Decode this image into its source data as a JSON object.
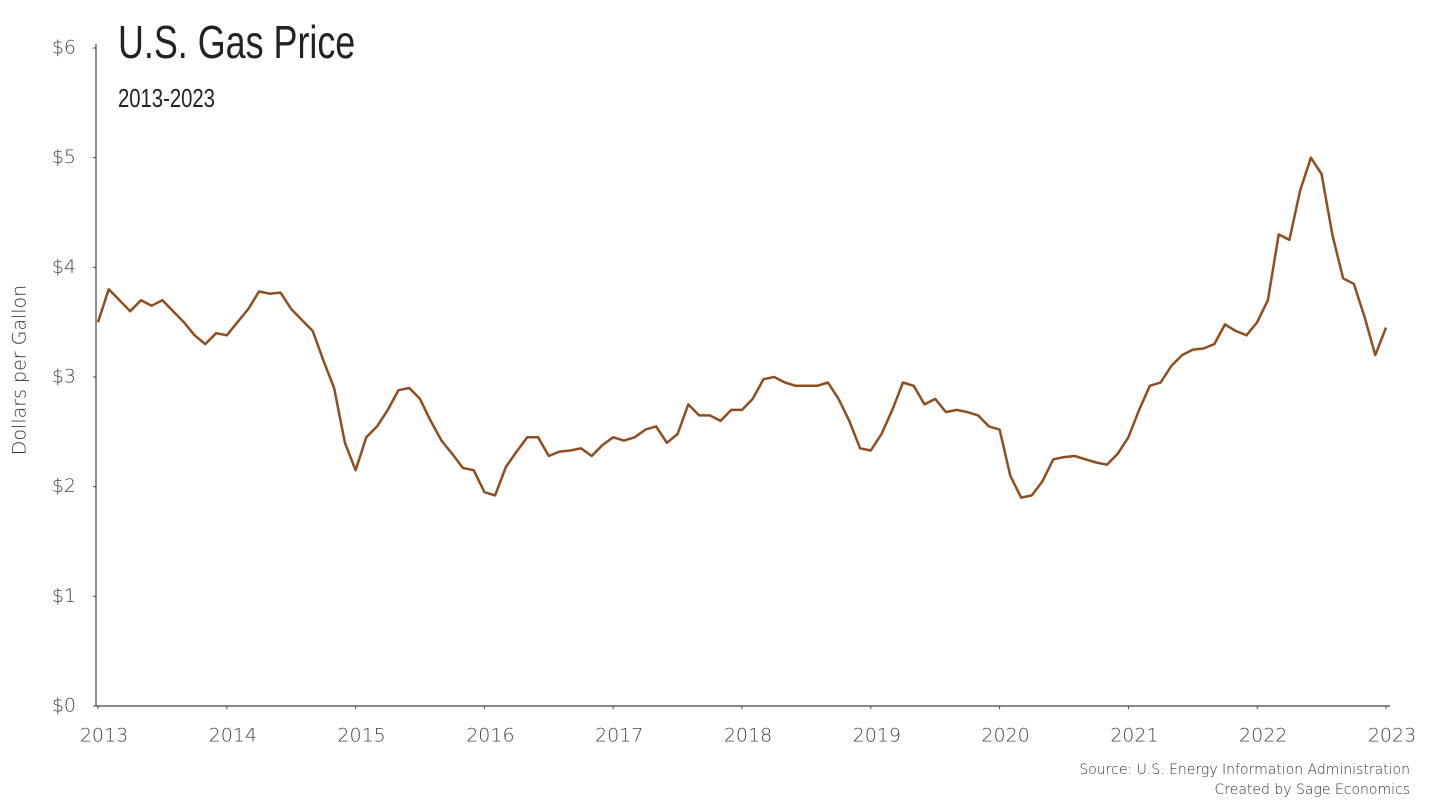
{
  "chart_data": {
    "type": "line",
    "title": "U.S. Gas Price",
    "subtitle": "2013-2023",
    "y_label": "Dollars per Gallon",
    "source": "Source: U.S. Energy Information Administration",
    "credit": "Created by Sage Economics",
    "color": "#8f4e20",
    "x": [
      2013,
      2013.083,
      2013.167,
      2013.25,
      2013.333,
      2013.417,
      2013.5,
      2013.583,
      2013.667,
      2013.75,
      2013.833,
      2013.917,
      2014,
      2014.083,
      2014.167,
      2014.25,
      2014.333,
      2014.417,
      2014.5,
      2014.583,
      2014.667,
      2014.75,
      2014.833,
      2014.917,
      2015,
      2015.083,
      2015.167,
      2015.25,
      2015.333,
      2015.417,
      2015.5,
      2015.583,
      2015.667,
      2015.75,
      2015.833,
      2015.917,
      2016,
      2016.083,
      2016.167,
      2016.25,
      2016.333,
      2016.417,
      2016.5,
      2016.583,
      2016.667,
      2016.75,
      2016.833,
      2016.917,
      2017,
      2017.083,
      2017.167,
      2017.25,
      2017.333,
      2017.417,
      2017.5,
      2017.583,
      2017.667,
      2017.75,
      2017.833,
      2017.917,
      2018,
      2018.083,
      2018.167,
      2018.25,
      2018.333,
      2018.417,
      2018.5,
      2018.583,
      2018.667,
      2018.75,
      2018.833,
      2018.917,
      2019,
      2019.083,
      2019.167,
      2019.25,
      2019.333,
      2019.417,
      2019.5,
      2019.583,
      2019.667,
      2019.75,
      2019.833,
      2019.917,
      2020,
      2020.083,
      2020.167,
      2020.25,
      2020.333,
      2020.417,
      2020.5,
      2020.583,
      2020.667,
      2020.75,
      2020.833,
      2020.917,
      2021,
      2021.083,
      2021.167,
      2021.25,
      2021.333,
      2021.417,
      2021.5,
      2021.583,
      2021.667,
      2021.75,
      2021.833,
      2021.917,
      2022,
      2022.083,
      2022.167,
      2022.25,
      2022.333,
      2022.417,
      2022.5,
      2022.583,
      2022.667,
      2022.75,
      2022.833,
      2022.917,
      2023
    ],
    "values": [
      3.5,
      3.8,
      3.7,
      3.6,
      3.7,
      3.65,
      3.7,
      3.6,
      3.5,
      3.38,
      3.3,
      3.4,
      3.38,
      3.5,
      3.62,
      3.78,
      3.76,
      3.77,
      3.62,
      3.52,
      3.42,
      3.15,
      2.9,
      2.4,
      2.15,
      2.45,
      2.55,
      2.7,
      2.88,
      2.9,
      2.8,
      2.6,
      2.42,
      2.3,
      2.17,
      2.15,
      1.95,
      1.92,
      2.18,
      2.32,
      2.45,
      2.45,
      2.28,
      2.32,
      2.33,
      2.35,
      2.28,
      2.38,
      2.45,
      2.42,
      2.45,
      2.52,
      2.55,
      2.4,
      2.48,
      2.75,
      2.65,
      2.65,
      2.6,
      2.7,
      2.7,
      2.8,
      2.98,
      3.0,
      2.95,
      2.92,
      2.92,
      2.92,
      2.95,
      2.8,
      2.6,
      2.35,
      2.33,
      2.48,
      2.7,
      2.95,
      2.92,
      2.75,
      2.8,
      2.68,
      2.7,
      2.68,
      2.65,
      2.55,
      2.52,
      2.1,
      1.9,
      1.92,
      2.05,
      2.25,
      2.27,
      2.28,
      2.25,
      2.22,
      2.2,
      2.3,
      2.45,
      2.7,
      2.92,
      2.95,
      3.1,
      3.2,
      3.25,
      3.26,
      3.3,
      3.48,
      3.42,
      3.38,
      3.5,
      3.7,
      4.3,
      4.25,
      4.7,
      5.0,
      4.85,
      4.3,
      3.9,
      3.85,
      3.55,
      3.2,
      3.45
    ],
    "xlim": [
      2013,
      2023
    ],
    "xticks": [
      2013,
      2014,
      2015,
      2016,
      2017,
      2018,
      2019,
      2020,
      2021,
      2022,
      2023
    ],
    "ylim": [
      0,
      6
    ],
    "yticks": [
      {
        "value": 0,
        "label": "$0"
      },
      {
        "value": 1,
        "label": "$1"
      },
      {
        "value": 2,
        "label": "$2"
      },
      {
        "value": 3,
        "label": "$3"
      },
      {
        "value": 4,
        "label": "$4"
      },
      {
        "value": 5,
        "label": "$5"
      },
      {
        "value": 6,
        "label": "$6"
      }
    ],
    "grid": false
  }
}
